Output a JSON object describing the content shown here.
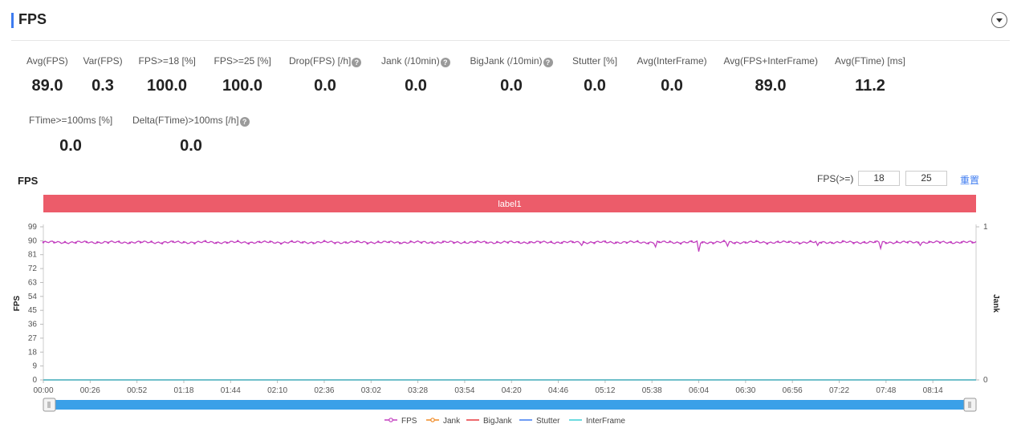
{
  "section": {
    "title": "FPS",
    "collapse_icon": "chevron-down-icon"
  },
  "metrics_row1": [
    {
      "label": "Avg(FPS)",
      "value": "89.0",
      "help": false
    },
    {
      "label": "Var(FPS)",
      "value": "0.3",
      "help": false
    },
    {
      "label": "FPS>=18 [%]",
      "value": "100.0",
      "help": false
    },
    {
      "label": "FPS>=25 [%]",
      "value": "100.0",
      "help": false
    },
    {
      "label": "Drop(FPS) [/h]",
      "value": "0.0",
      "help": true
    },
    {
      "label": "Jank (/10min)",
      "value": "0.0",
      "help": true
    },
    {
      "label": "BigJank (/10min)",
      "value": "0.0",
      "help": true
    },
    {
      "label": "Stutter [%]",
      "value": "0.0",
      "help": false
    },
    {
      "label": "Avg(InterFrame)",
      "value": "0.0",
      "help": false
    },
    {
      "label": "Avg(FPS+InterFrame)",
      "value": "89.0",
      "help": false
    },
    {
      "label": "Avg(FTime) [ms]",
      "value": "11.2",
      "help": false
    }
  ],
  "metrics_row2": [
    {
      "label": "FTime>=100ms [%]",
      "value": "0.0",
      "help": false
    },
    {
      "label": "Delta(FTime)>100ms [/h]",
      "value": "0.0",
      "help": true
    }
  ],
  "chart_header": {
    "title": "FPS",
    "threshold_label": "FPS(>=)",
    "threshold_low": "18",
    "threshold_high": "25",
    "reset_label": "重置"
  },
  "chart_data": {
    "type": "line",
    "band_label": "label1",
    "band_color": "#ec5c6a",
    "ylabel": "FPS",
    "y2label": "Jank",
    "ylim": [
      0,
      99
    ],
    "yticks": [
      0,
      9,
      18,
      27,
      36,
      45,
      54,
      63,
      72,
      81,
      90,
      99
    ],
    "y2lim": [
      0,
      1
    ],
    "y2ticks": [
      0,
      1
    ],
    "x_ticks": [
      "00:00",
      "00:26",
      "00:52",
      "01:18",
      "01:44",
      "02:10",
      "02:36",
      "03:02",
      "03:28",
      "03:54",
      "04:20",
      "04:46",
      "05:12",
      "05:38",
      "06:04",
      "06:30",
      "06:56",
      "07:22",
      "07:48",
      "08:14"
    ],
    "x_range_seconds": [
      0,
      518
    ],
    "series": [
      {
        "name": "FPS",
        "color": "#c23fbf",
        "baseline": 89,
        "dips": [
          [
            299,
            87
          ],
          [
            340,
            86
          ],
          [
            364,
            83
          ],
          [
            380,
            86.5
          ],
          [
            430,
            87
          ],
          [
            465,
            85
          ],
          [
            487,
            87
          ]
        ]
      },
      {
        "name": "Jank",
        "color": "#f08a24",
        "values_constant": 0
      },
      {
        "name": "BigJank",
        "color": "#e8383d",
        "values_constant": 0
      },
      {
        "name": "Stutter",
        "color": "#3d7bf0",
        "values_constant": 0
      },
      {
        "name": "InterFrame",
        "color": "#3ccfd6",
        "values_constant": 0
      }
    ],
    "legend_position": "bottom-center",
    "grid": false
  }
}
